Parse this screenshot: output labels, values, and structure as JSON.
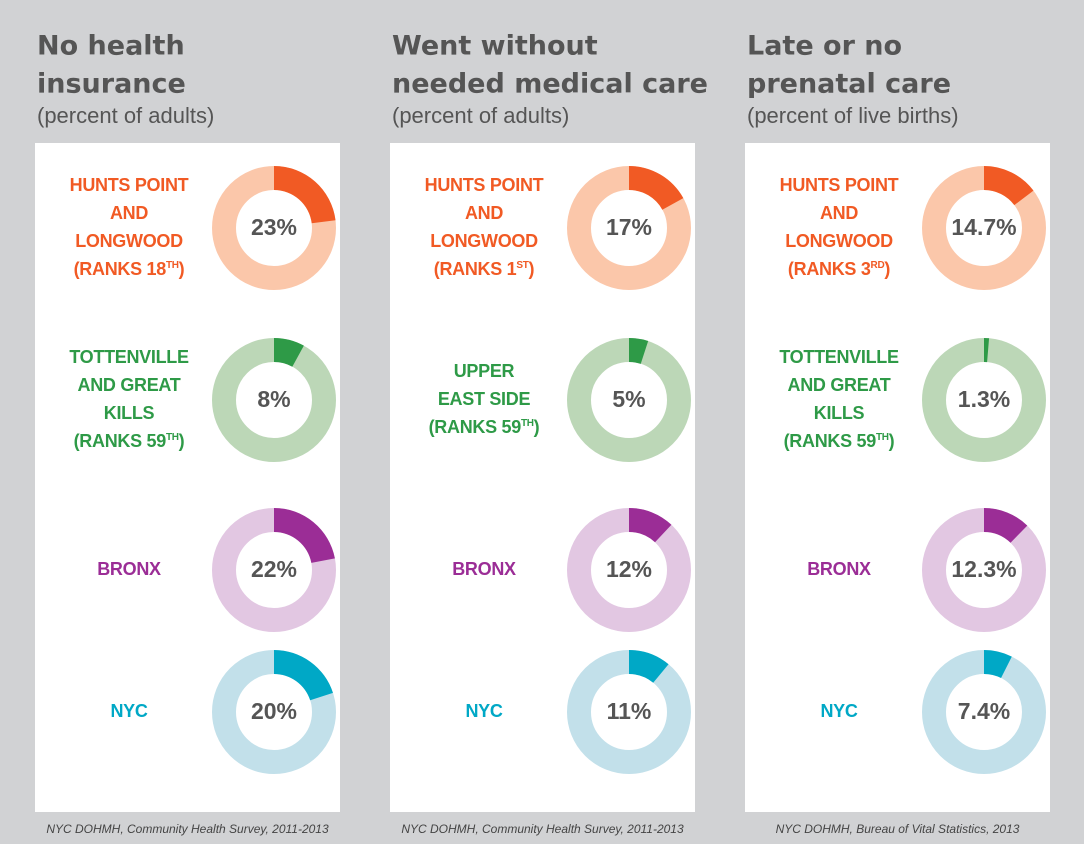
{
  "chart_data": [
    {
      "type": "donut",
      "title": [
        "No health",
        "insurance"
      ],
      "subtitle": "(percent of adults)",
      "categories": [
        [
          "HUNTS POINT",
          "AND",
          "LONGWOOD"
        ],
        [
          "TOTTENVILLE",
          "AND GREAT",
          "KILLS"
        ],
        [
          "BRONX"
        ],
        [
          "NYC"
        ]
      ],
      "ranks": [
        {
          "pre": "(RANKS 18",
          "sup": "TH",
          "post": ")"
        },
        {
          "pre": "(RANKS 59",
          "sup": "TH",
          "post": ")"
        },
        null,
        null
      ],
      "values": [
        23,
        8,
        22,
        20
      ],
      "value_labels": [
        "23%",
        "8%",
        "22%",
        "20%"
      ],
      "colors": [
        "#f15a24",
        "#2e9a47",
        "#9b2d96",
        "#00a8c6"
      ],
      "ring_colors": [
        "#fbc7aa",
        "#bcd7b7",
        "#e2c7e2",
        "#c2e0ea"
      ],
      "source": "NYC DOHMH, Community Health Survey, 2011-2013"
    },
    {
      "type": "donut",
      "title": [
        "Went without",
        "needed medical care"
      ],
      "subtitle": "(percent of adults)",
      "categories": [
        [
          "HUNTS POINT",
          "AND",
          "LONGWOOD"
        ],
        [
          "UPPER",
          "EAST SIDE"
        ],
        [
          "BRONX"
        ],
        [
          "NYC"
        ]
      ],
      "ranks": [
        {
          "pre": "(RANKS 1",
          "sup": "ST",
          "post": ")"
        },
        {
          "pre": "(RANKS 59",
          "sup": "TH",
          "post": ")"
        },
        null,
        null
      ],
      "values": [
        17,
        5,
        12,
        11
      ],
      "value_labels": [
        "17%",
        "5%",
        "12%",
        "11%"
      ],
      "colors": [
        "#f15a24",
        "#2e9a47",
        "#9b2d96",
        "#00a8c6"
      ],
      "ring_colors": [
        "#fbc7aa",
        "#bcd7b7",
        "#e2c7e2",
        "#c2e0ea"
      ],
      "source": "NYC DOHMH, Community Health Survey, 2011-2013"
    },
    {
      "type": "donut",
      "title": [
        "Late or no",
        "prenatal care"
      ],
      "subtitle": "(percent of live births)",
      "categories": [
        [
          "HUNTS POINT",
          "AND",
          "LONGWOOD"
        ],
        [
          "TOTTENVILLE",
          "AND GREAT",
          "KILLS"
        ],
        [
          "BRONX"
        ],
        [
          "NYC"
        ]
      ],
      "ranks": [
        {
          "pre": "(RANKS 3",
          "sup": "RD",
          "post": ")"
        },
        {
          "pre": "(RANKS 59",
          "sup": "TH",
          "post": ")"
        },
        null,
        null
      ],
      "values": [
        14.7,
        1.3,
        12.3,
        7.4
      ],
      "value_labels": [
        "14.7%",
        "1.3%",
        "12.3%",
        "7.4%"
      ],
      "colors": [
        "#f15a24",
        "#2e9a47",
        "#9b2d96",
        "#00a8c6"
      ],
      "ring_colors": [
        "#fbc7aa",
        "#bcd7b7",
        "#e2c7e2",
        "#c2e0ea"
      ],
      "source": "NYC DOHMH, Bureau of Vital Statistics, 2013"
    }
  ]
}
